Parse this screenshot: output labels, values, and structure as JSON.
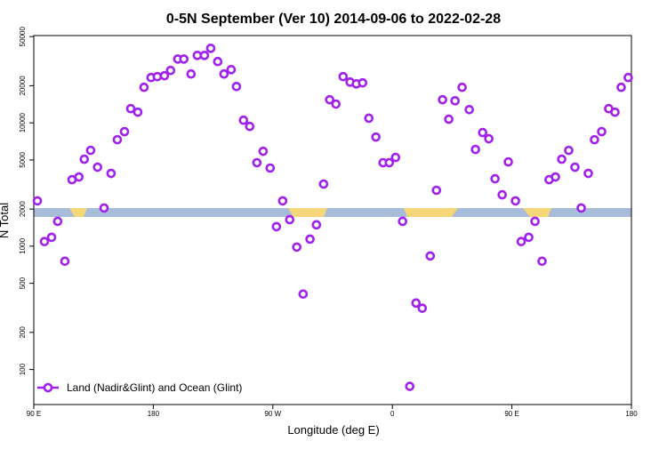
{
  "chart_data": {
    "type": "scatter",
    "title": "0-5N September (Ver 10)   2014-09-06 to 2022-02-28",
    "x_label": "Longitude (deg E)",
    "y_label": "N Total",
    "log_y": true,
    "legend": "bottom-left",
    "xlim": [
      90,
      540
    ],
    "xticks": [
      {
        "value": 90,
        "label": "90 E"
      },
      180,
      {
        "value": 270,
        "label": "90 W"
      },
      {
        "value": 360,
        "label": "0"
      },
      {
        "value": 450,
        "label": "90 E"
      },
      {
        "value": 540,
        "label": "180"
      }
    ],
    "ylim": [
      52,
      51000
    ],
    "yticks": [
      100,
      200,
      500,
      1000,
      2000,
      5000,
      10000,
      20000,
      50000
    ],
    "x": [
      92.7,
      98,
      103.4,
      108,
      113.4,
      118.8,
      124,
      128,
      132.8,
      138,
      142.9,
      148.2,
      152.9,
      158.3,
      163,
      168.3,
      173,
      178.3,
      183,
      188.4,
      193,
      198.4,
      203,
      208.4,
      213.1,
      218.5,
      223.2,
      228.5,
      233.2,
      238.6,
      242.6,
      247.9,
      252.6,
      258,
      262.7,
      268,
      272.7,
      277.4,
      282.7,
      288,
      292.8,
      298,
      302.8,
      308.2,
      312.8,
      317.5,
      322.9,
      328.2,
      332.9,
      337.6,
      342.3,
      347.6,
      353,
      357.7,
      362.4,
      367.7,
      373.1,
      377.8,
      382.5,
      388.5,
      393.2,
      397.8,
      402.5,
      407.2,
      412.5,
      417.9,
      422.6,
      428,
      432.6,
      437.3,
      442.7,
      447.3,
      452.7,
      457,
      462.7,
      467.4,
      472.7,
      478,
      482.8,
      487.5,
      492.8,
      497.5,
      502.2,
      507.5,
      512.2,
      517.6,
      522.9,
      527.6,
      532.3,
      537.6
    ],
    "series": [
      {
        "name": "Land (Nadir&Glint) and Ocean (Glint)",
        "color": "#a020f0",
        "values": [
          2330,
          1090,
          1180,
          1590,
          755,
          3460,
          3640,
          5070,
          5980,
          4370,
          2040,
          3890,
          7300,
          8480,
          13030,
          12200,
          19400,
          23300,
          23700,
          24100,
          26600,
          32900,
          32900,
          24900,
          35200,
          35200,
          40200,
          31400,
          24900,
          27000,
          19700,
          10500,
          9350,
          4750,
          5880,
          4300,
          1440,
          2330,
          1640,
          983,
          409,
          1140,
          1490,
          3190,
          15400,
          14200,
          23700,
          21400,
          20700,
          21100,
          10900,
          7670,
          4750,
          4750,
          5240,
          1590,
          73,
          346,
          314,
          833,
          2840,
          15400,
          10700,
          15100,
          19400,
          12800,
          6080,
          8340,
          7430,
          3520,
          2610,
          4820,
          2330,
          1090,
          1180,
          1590,
          755,
          3460,
          3640,
          5070,
          5980,
          4370,
          2040,
          3890,
          7300,
          8480,
          13030,
          12200,
          19400,
          23300
        ]
      }
    ]
  }
}
